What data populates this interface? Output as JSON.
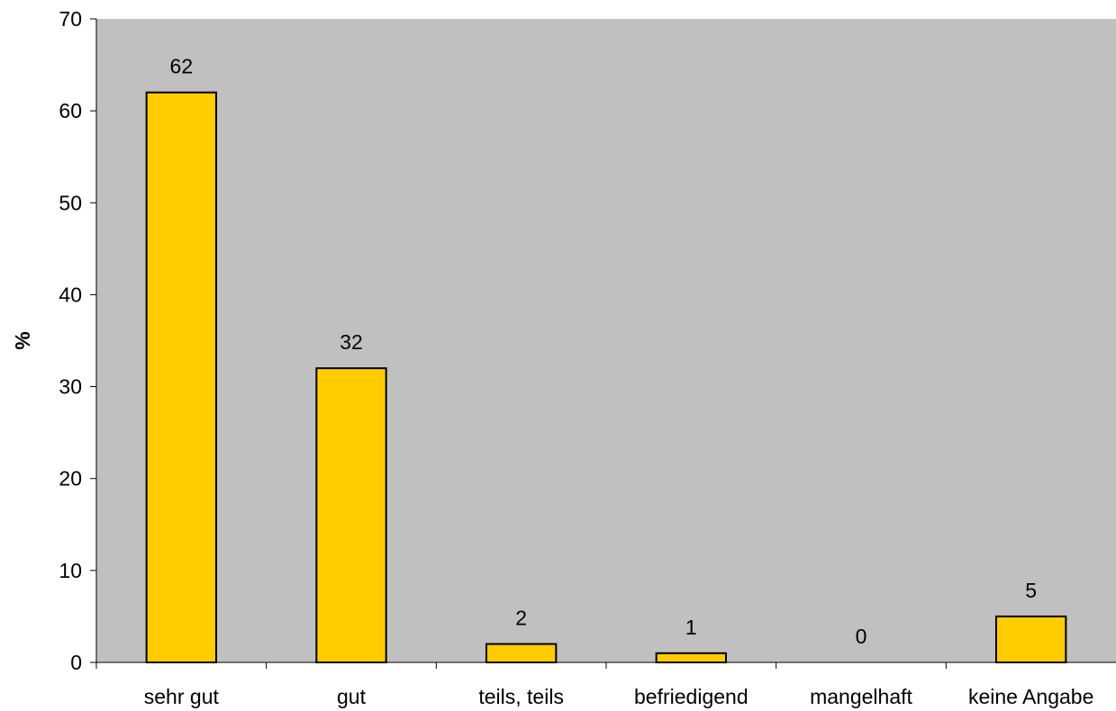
{
  "chart_data": {
    "type": "bar",
    "categories": [
      "sehr gut",
      "gut",
      "teils, teils",
      "befriedigend",
      "mangelhaft",
      "keine Angabe"
    ],
    "values": [
      62,
      32,
      2,
      1,
      0,
      5
    ],
    "data_labels": [
      "62",
      "32",
      "2",
      "1",
      "0",
      "5"
    ],
    "title": "",
    "xlabel": "",
    "ylabel": "%",
    "ylim": [
      0,
      70
    ],
    "yticks": [
      0,
      10,
      20,
      30,
      40,
      50,
      60,
      70
    ],
    "grid": false,
    "legend": "none"
  },
  "colors": {
    "plot_background": "#c0c0c0",
    "bar_fill": "#ffcc00",
    "bar_stroke": "#000000",
    "axis": "#000000"
  }
}
